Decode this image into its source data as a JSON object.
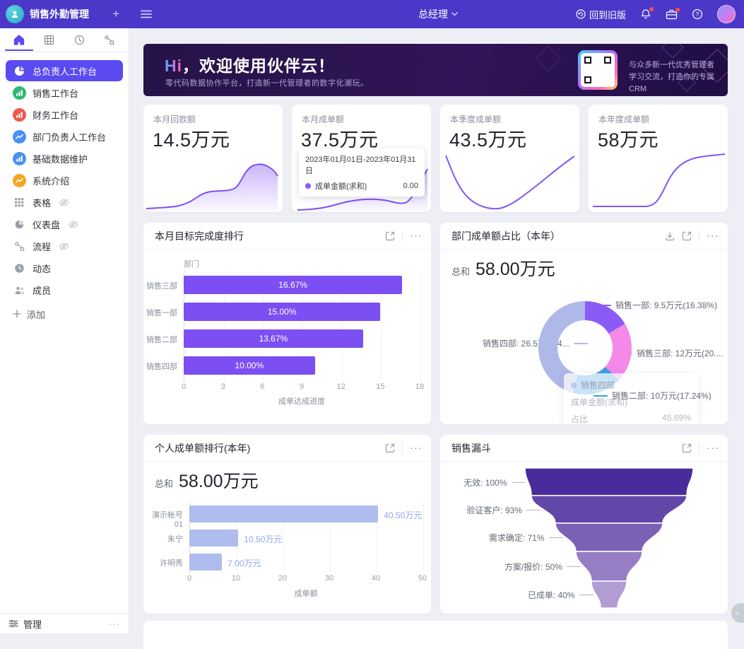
{
  "topbar": {
    "app_title": "销售外勤管理",
    "role": "总经理",
    "back_to_old_label": "回到旧版"
  },
  "sidebar": {
    "tabs": [
      {
        "name": "home",
        "active": true
      },
      {
        "name": "table",
        "active": false
      },
      {
        "name": "clock",
        "active": false
      },
      {
        "name": "flow",
        "active": false
      }
    ],
    "items": [
      {
        "label": "总负责人工作台",
        "icon": "pie",
        "color": "#5b4af0",
        "active": true
      },
      {
        "label": "销售工作台",
        "icon": "bar",
        "color": "#2eb872",
        "active": false
      },
      {
        "label": "财务工作台",
        "icon": "bar",
        "color": "#f2544b",
        "active": false
      },
      {
        "label": "部门负责人工作台",
        "icon": "line",
        "color": "#4a90f5",
        "active": false
      },
      {
        "label": "基础数据维护",
        "icon": "bar",
        "color": "#4a90f5",
        "active": false
      },
      {
        "label": "系统介绍",
        "icon": "line",
        "color": "#f5a623",
        "active": false
      }
    ],
    "tools": [
      {
        "label": "表格",
        "icon": "grid",
        "hidden_eye": true
      },
      {
        "label": "仪表盘",
        "icon": "gauge",
        "hidden_eye": true
      },
      {
        "label": "流程",
        "icon": "flowline",
        "hidden_eye": true
      },
      {
        "label": "动态",
        "icon": "clockfill",
        "hidden_eye": false
      },
      {
        "label": "成员",
        "icon": "members",
        "hidden_eye": false
      }
    ],
    "add_label": "添加",
    "manage_label": "管理",
    "manage_more": "···"
  },
  "banner": {
    "title_hi": "Hi",
    "title_rest": "，欢迎使用伙伴云！",
    "subtitle": "零代码数据协作平台，打造新一代管理者的数字化潮玩。",
    "qr_text_line1": "与众多新一代优秀管理者",
    "qr_text_line2": "学习交流，打造你的专属CRM"
  },
  "stat_cards": [
    {
      "title": "本月回款额",
      "value": "14.5万元"
    },
    {
      "title": "本月成单额",
      "value": "37.5万元",
      "tooltip": {
        "date_range": "2023年01月01日-2023年01月31日",
        "series": "成单金额(求和)",
        "value": "0.00"
      }
    },
    {
      "title": "本季度成单额",
      "value": "43.5万元"
    },
    {
      "title": "本年度成单额",
      "value": "58万元"
    }
  ],
  "chart_data": [
    {
      "type": "bar",
      "title": "本月目标完成度排行",
      "categories": [
        "销售三部",
        "销售一部",
        "销售二部",
        "销售四部"
      ],
      "values": [
        16.67,
        15.0,
        13.67,
        10.0
      ],
      "bar_labels": [
        "16.67%",
        "15.00%",
        "13.67%",
        "10.00%"
      ],
      "xlabel": "成单达成进度",
      "ylabel": "部门",
      "xlim": [
        0,
        18
      ],
      "xticks": [
        0,
        3,
        6,
        9,
        12,
        15,
        18
      ],
      "color": "#7b4ff2",
      "legend_position": "none",
      "grid": true
    },
    {
      "type": "pie",
      "title": "部门成单额占比（本年）",
      "total_label": "总和",
      "total_value": "58.00万元",
      "slices": [
        {
          "name": "销售一部",
          "value": 9.5,
          "percent": 16.38,
          "display_label": "销售一部: 9.5万元(16.38%)",
          "color": "#8a5cf5"
        },
        {
          "name": "销售三部",
          "value": 12,
          "percent": 20.69,
          "display_label": "销售三部: 12万元(20....",
          "color": "#f489e8"
        },
        {
          "name": "销售二部",
          "value": 10,
          "percent": 17.24,
          "display_label": "销售二部: 10万元(17.24%)",
          "color": "#3d9ce9"
        },
        {
          "name": "销售四部",
          "value": 26.5,
          "percent": 45.69,
          "display_label": "销售四部: 26.5万元(4...",
          "color": "#aeb9e8"
        }
      ],
      "tooltip": {
        "title": "销售四部",
        "rows": [
          {
            "label": "成单金额(求和)",
            "value": ""
          },
          {
            "label": "占比",
            "value": "45.69%"
          }
        ]
      }
    },
    {
      "type": "bar",
      "title": "个人成单额排行(本年)",
      "total_label": "总和",
      "total_value": "58.00万元",
      "categories": [
        "演示帐号01",
        "朱宁",
        "许明秀"
      ],
      "values": [
        40.5,
        10.5,
        7
      ],
      "value_labels": [
        "40.50万元",
        "10.50万元",
        "7.00万元"
      ],
      "xlabel": "成单额",
      "xlim": [
        0,
        50
      ],
      "xticks": [
        0,
        10,
        20,
        30,
        40,
        50
      ],
      "color": "#aebcee",
      "value_color": "#8fa7e8",
      "legend_position": "none",
      "grid": true
    },
    {
      "type": "funnel",
      "title": "销售漏斗",
      "stages": [
        {
          "label": "无效: 100%",
          "value": 100,
          "color": "#4a2b9b"
        },
        {
          "label": "验证客户: 93%",
          "value": 93,
          "color": "#6247a8"
        },
        {
          "label": "需求确定: 71%",
          "value": 71,
          "color": "#7d61b6"
        },
        {
          "label": "方案/报价: 50%",
          "value": 50,
          "color": "#977ec4"
        },
        {
          "label": "已成单: 40%",
          "value": 40,
          "color": "#b29cd4"
        }
      ]
    }
  ],
  "misc": {
    "collapse_glyph": "‹"
  }
}
